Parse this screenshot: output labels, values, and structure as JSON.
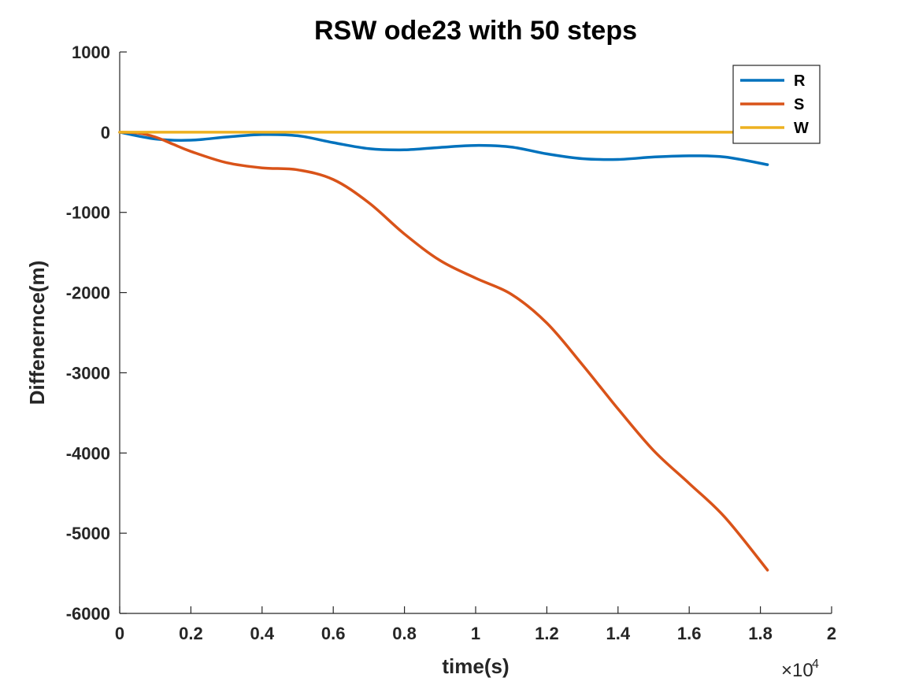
{
  "chart_data": {
    "type": "line",
    "title": "RSW ode23 with 50 steps",
    "xlabel": "time(s)",
    "ylabel": "Diffenernce(m)",
    "x_exponent_base": "×10",
    "x_exponent_power": "4",
    "xlim": [
      0,
      20000
    ],
    "ylim": [
      -6000,
      1000
    ],
    "x_ticks": [
      0,
      2000,
      4000,
      6000,
      8000,
      10000,
      12000,
      14000,
      16000,
      18000,
      20000
    ],
    "x_tick_labels": [
      "0",
      "0.2",
      "0.4",
      "0.6",
      "0.8",
      "1",
      "1.2",
      "1.4",
      "1.6",
      "1.8",
      "2"
    ],
    "y_ticks": [
      1000,
      0,
      -1000,
      -2000,
      -3000,
      -4000,
      -5000,
      -6000
    ],
    "y_tick_labels": [
      "1000",
      "0",
      "-1000",
      "-2000",
      "-3000",
      "-4000",
      "-5000",
      "-6000"
    ],
    "grid": false,
    "legend_position": "top-right",
    "series": [
      {
        "name": "R",
        "color": "#0072BD",
        "x": [
          0,
          1000,
          2000,
          3000,
          4000,
          5000,
          6000,
          7000,
          8000,
          9000,
          10000,
          11000,
          12000,
          13000,
          14000,
          15000,
          16000,
          17000,
          18200
        ],
        "y": [
          0,
          -85,
          -100,
          -60,
          -30,
          -45,
          -130,
          -205,
          -220,
          -190,
          -165,
          -185,
          -270,
          -330,
          -340,
          -310,
          -295,
          -310,
          -405
        ]
      },
      {
        "name": "S",
        "color": "#D95319",
        "x": [
          0,
          500,
          1000,
          1500,
          2000,
          3000,
          4000,
          5000,
          6000,
          7000,
          8000,
          9000,
          10000,
          11000,
          12000,
          13000,
          14000,
          15000,
          16000,
          17000,
          18200
        ],
        "y": [
          0,
          -10,
          -60,
          -150,
          -240,
          -380,
          -445,
          -470,
          -590,
          -880,
          -1270,
          -1600,
          -1820,
          -2020,
          -2380,
          -2900,
          -3450,
          -3970,
          -4380,
          -4800,
          -5460
        ]
      },
      {
        "name": "W",
        "color": "#EDB120",
        "x": [
          0,
          18200
        ],
        "y": [
          0,
          0
        ]
      }
    ]
  }
}
